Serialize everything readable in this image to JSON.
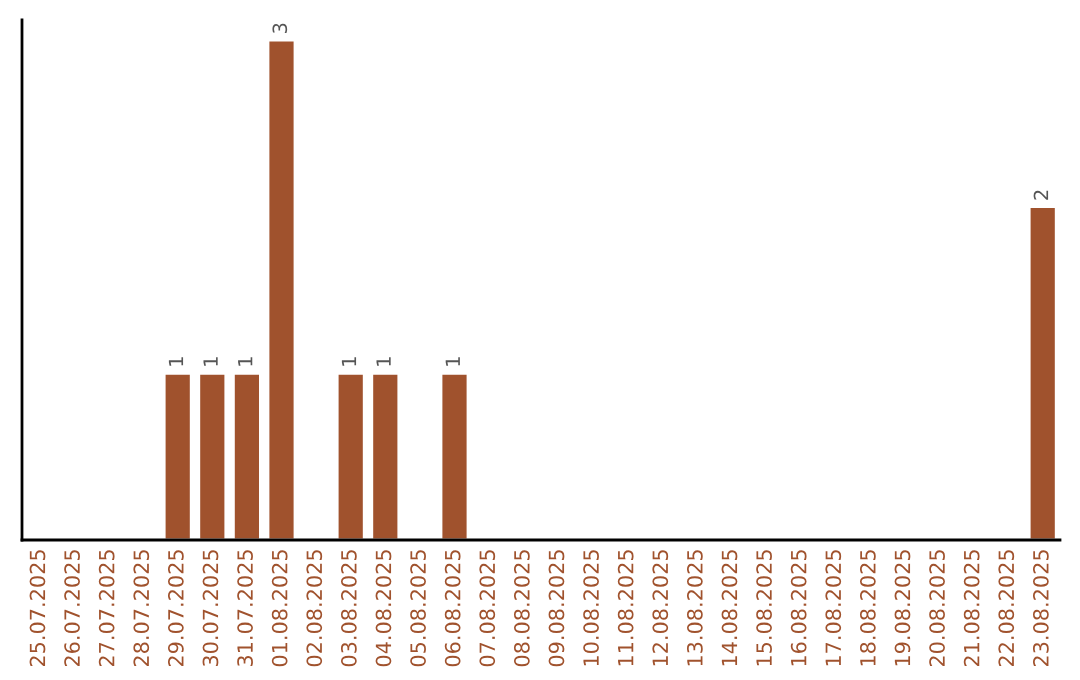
{
  "chart_data": {
    "type": "bar",
    "categories": [
      "25.07.2025",
      "26.07.2025",
      "27.07.2025",
      "28.07.2025",
      "29.07.2025",
      "30.07.2025",
      "31.07.2025",
      "01.08.2025",
      "02.08.2025",
      "03.08.2025",
      "04.08.2025",
      "05.08.2025",
      "06.08.2025",
      "07.08.2025",
      "08.08.2025",
      "09.08.2025",
      "10.08.2025",
      "11.08.2025",
      "12.08.2025",
      "13.08.2025",
      "14.08.2025",
      "15.08.2025",
      "16.08.2025",
      "17.08.2025",
      "18.08.2025",
      "19.08.2025",
      "20.08.2025",
      "21.08.2025",
      "22.08.2025",
      "23.08.2025"
    ],
    "values": [
      0,
      0,
      0,
      0,
      1,
      1,
      1,
      3,
      0,
      1,
      1,
      0,
      1,
      0,
      0,
      0,
      0,
      0,
      0,
      0,
      0,
      0,
      0,
      0,
      0,
      0,
      0,
      0,
      0,
      2
    ],
    "value_labels": [
      null,
      null,
      null,
      null,
      "1",
      "1",
      "1",
      "3",
      null,
      "1",
      "1",
      null,
      "1",
      null,
      null,
      null,
      null,
      null,
      null,
      null,
      null,
      null,
      null,
      null,
      null,
      null,
      null,
      null,
      null,
      "2"
    ],
    "color": "#a0522d",
    "grid": false,
    "legend": false,
    "tick_labels": "x"
  }
}
